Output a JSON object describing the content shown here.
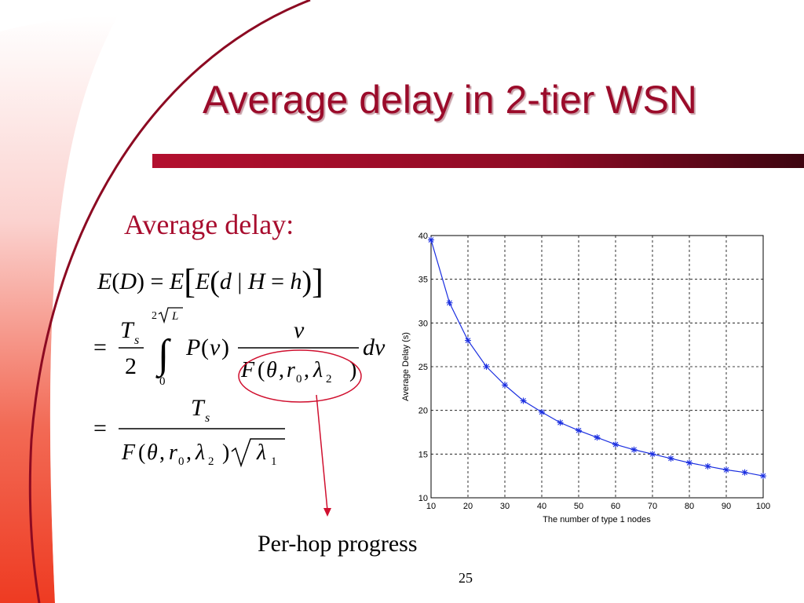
{
  "slide": {
    "title": "Average delay in 2-tier WSN",
    "subheading": "Average delay:",
    "caption": "Per-hop progress",
    "page_number": "25",
    "colors": {
      "title": "#9b0b2a",
      "accent_bar": "#8e0b25",
      "series": "#1a2ee0"
    }
  },
  "equations": {
    "line1": "E(D) = E[E(d | H = h)]",
    "line2": "= (T_s / 2) ∫_0^{2√L} P(v) v / F(θ, r_0, λ_2) dv",
    "line3": "= T_s / (F(θ, r_0, λ_2) √λ_1)"
  },
  "chart_data": {
    "type": "line",
    "xlabel": "The number of type 1 nodes",
    "ylabel": "Average Delay (s)",
    "xlim": [
      10,
      100
    ],
    "ylim": [
      10,
      40
    ],
    "xticks": [
      10,
      20,
      30,
      40,
      50,
      60,
      70,
      80,
      90,
      100
    ],
    "yticks": [
      10,
      15,
      20,
      25,
      30,
      35,
      40
    ],
    "grid": true,
    "marker": "*",
    "series": [
      {
        "x": [
          10,
          15,
          20,
          25,
          30,
          35,
          40,
          45,
          50,
          55,
          60,
          65,
          70,
          75,
          80,
          85,
          90,
          95,
          100
        ],
        "y": [
          39.5,
          32.3,
          28.0,
          25.0,
          22.9,
          21.1,
          19.8,
          18.6,
          17.7,
          16.9,
          16.1,
          15.5,
          15.0,
          14.5,
          14.0,
          13.6,
          13.2,
          12.9,
          12.5
        ]
      }
    ]
  }
}
